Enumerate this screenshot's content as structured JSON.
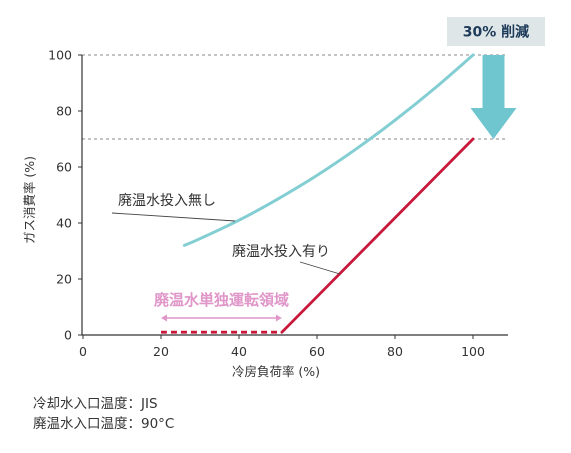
{
  "chart_data": {
    "type": "line",
    "xlabel": "冷房負荷率 (%)",
    "ylabel": "ガス消費率 (%)",
    "xlim": [
      0,
      100
    ],
    "ylim": [
      0,
      100
    ],
    "xticks": [
      0,
      20,
      40,
      60,
      80,
      100
    ],
    "yticks": [
      0,
      20,
      40,
      60,
      80,
      100
    ],
    "grid": false,
    "reference_lines": [
      {
        "y": 100,
        "style": "dashed"
      },
      {
        "y": 70,
        "style": "dashed"
      }
    ],
    "series": [
      {
        "name": "廃温水投入無し",
        "color": "#82ced3",
        "segments": [
          {
            "style": "solid",
            "x": [
              26,
              30,
              40,
              50,
              60,
              70,
              80,
              90,
              100
            ],
            "y": [
              32,
              34.4,
              41,
              48.6,
              57,
              66.4,
              76.7,
              87.9,
              100
            ]
          }
        ]
      },
      {
        "name": "廃温水投入有り",
        "color": "#c8183c",
        "segments": [
          {
            "style": "dashed",
            "x": [
              20,
              51
            ],
            "y": [
              1,
              1
            ]
          },
          {
            "style": "solid",
            "x": [
              51,
              100
            ],
            "y": [
              1,
              70
            ]
          }
        ]
      }
    ],
    "annotations": [
      {
        "type": "reduction-arrow",
        "text": "30% 削減",
        "from_y": 100,
        "to_y": 70,
        "color": "#6fc6cf",
        "badge_color": "#dfe6e8",
        "text_color": "#1d3a58"
      },
      {
        "type": "range-arrow",
        "text": "廃温水単独運転領域",
        "x": [
          20,
          51
        ],
        "color": "#e096c8"
      }
    ]
  },
  "notes": [
    "冷却水入口温度：JIS",
    "廃温水入口温度：90°C"
  ]
}
